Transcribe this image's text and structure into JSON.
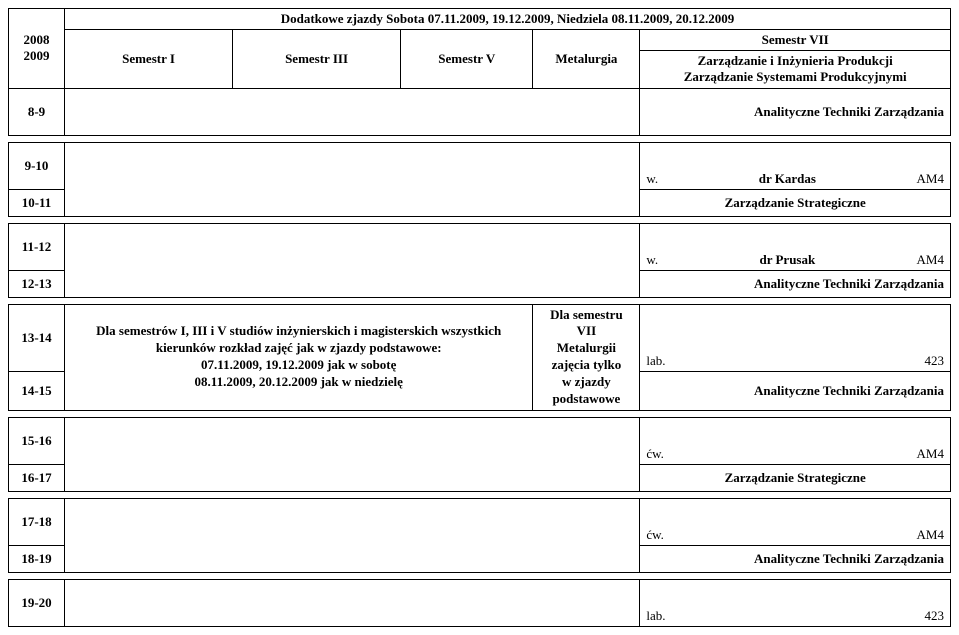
{
  "header": {
    "year1": "2008",
    "year2": "2009",
    "extra_meetings": "Dodatkowe zjazdy  Sobota  07.11.2009, 19.12.2009,  Niedziela  08.11.2009, 20.12.2009",
    "sem1": "Semestr I",
    "sem3": "Semestr III",
    "sem5": "Semestr V",
    "met": "Metalurgia",
    "sem7": "Semestr VII",
    "sem7_line1": "Zarządzanie i Inżynieria Produkcji",
    "sem7_line2": "Zarządzanie Systemami Produkcyjnymi"
  },
  "rows": {
    "r89": {
      "time": "8-9",
      "s7": "Analityczne Techniki Zarządzania"
    },
    "r910": {
      "time": "9-10",
      "s7_w": "w.",
      "s7_who": "dr Kardas",
      "s7_room": "AM4"
    },
    "r1011": {
      "time": "10-11",
      "s7": "Zarządzanie Strategiczne"
    },
    "r1112": {
      "time": "11-12",
      "s7_w": "w.",
      "s7_who": "dr Prusak",
      "s7_room": "AM4"
    },
    "r1213": {
      "time": "12-13",
      "s7": "Analityczne Techniki Zarządzania"
    },
    "r1314": {
      "time": "13-14"
    },
    "r1415": {
      "time": "14-15"
    },
    "mid_text_line1": "Dla semestrów I, III i V studiów inżynierskich i magisterskich wszystkich",
    "mid_text_line2": "kierunków rozkład zajęć jak w zjazdy podstawowe:",
    "mid_text_line3": "07.11.2009, 19.12.2009 jak w sobotę",
    "mid_text_line4": "08.11.2009, 20.12.2009 jak w niedzielę",
    "mid_right_line1": "Dla semestru VII",
    "mid_right_line2": "Metalurgii zajęcia tylko",
    "mid_right_line3": "w zjazdy podstawowe",
    "r1314_s7_l": "lab.",
    "r1314_s7_r": "423",
    "r1415_s7": "Analityczne Techniki Zarządzania",
    "r1516": {
      "time": "15-16",
      "s7_w": "ćw.",
      "s7_room": "AM4"
    },
    "r1617": {
      "time": "16-17",
      "s7": "Zarządzanie Strategiczne"
    },
    "r1718": {
      "time": "17-18",
      "s7_w": "ćw.",
      "s7_room": "AM4"
    },
    "r1819": {
      "time": "18-19",
      "s7": "Analityczne Techniki Zarządzania"
    },
    "r1920": {
      "time": "19-20",
      "s7_l": "lab.",
      "s7_r": "423"
    }
  }
}
